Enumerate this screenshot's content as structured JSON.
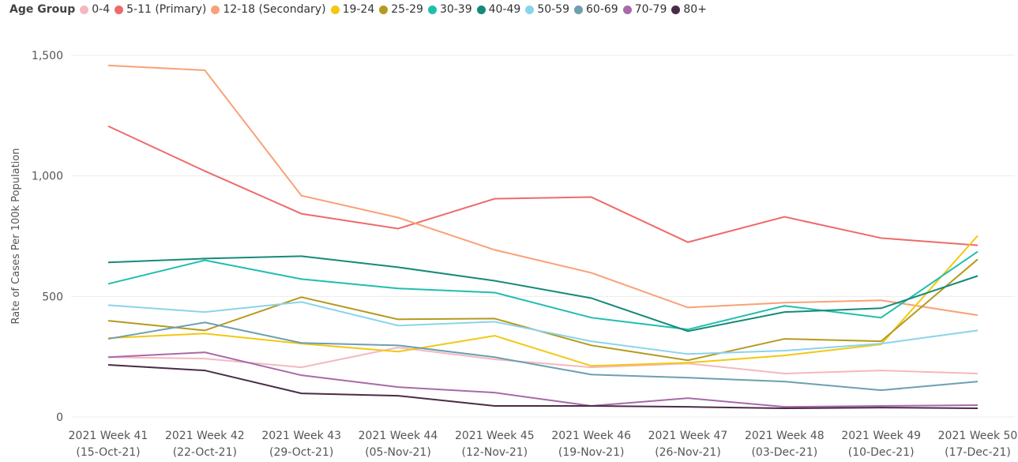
{
  "chart_data": {
    "type": "line",
    "legend_title": "Age Group",
    "y_label": "Rate of Cases Per 100k Population",
    "categories": [
      [
        "2021 Week 41",
        "(15-Oct-21)"
      ],
      [
        "2021 Week 42",
        "(22-Oct-21)"
      ],
      [
        "2021 Week 43",
        "(29-Oct-21)"
      ],
      [
        "2021 Week 44",
        "(05-Nov-21)"
      ],
      [
        "2021 Week 45",
        "(12-Nov-21)"
      ],
      [
        "2021 Week 46",
        "(19-Nov-21)"
      ],
      [
        "2021 Week 47",
        "(26-Nov-21)"
      ],
      [
        "2021 Week 48",
        "(03-Dec-21)"
      ],
      [
        "2021 Week 49",
        "(10-Dec-21)"
      ],
      [
        "2021 Week 50",
        "(17-Dec-21)"
      ]
    ],
    "ylim": [
      0,
      1500
    ],
    "yticks": [
      0,
      500,
      {
        "value": 1000,
        "label": "1,000"
      },
      {
        "value": 1500,
        "label": "1,500"
      }
    ],
    "grid": true,
    "series": [
      {
        "name": "0-4",
        "color": "#f4b8c0",
        "values": [
          248,
          242,
          206,
          288,
          239,
          206,
          222,
          180,
          193,
          180
        ]
      },
      {
        "name": "5-11 (Primary)",
        "color": "#ef6a6a",
        "values": [
          1206,
          1020,
          843,
          781,
          905,
          912,
          725,
          830,
          742,
          712
        ]
      },
      {
        "name": "12-18 (Secondary)",
        "color": "#f9a177",
        "values": [
          1458,
          1438,
          918,
          827,
          693,
          598,
          454,
          474,
          484,
          422
        ]
      },
      {
        "name": "19-24",
        "color": "#f2c811",
        "values": [
          327,
          346,
          304,
          271,
          337,
          212,
          225,
          255,
          301,
          752
        ]
      },
      {
        "name": "25-29",
        "color": "#b59a1f",
        "values": [
          399,
          359,
          497,
          405,
          408,
          297,
          235,
          324,
          314,
          654
        ]
      },
      {
        "name": "30-39",
        "color": "#1fbeb0",
        "values": [
          552,
          650,
          572,
          533,
          516,
          412,
          363,
          461,
          412,
          686
        ]
      },
      {
        "name": "40-49",
        "color": "#168a79",
        "values": [
          641,
          657,
          667,
          621,
          565,
          493,
          356,
          435,
          451,
          585
        ]
      },
      {
        "name": "50-59",
        "color": "#8ad4eb",
        "values": [
          464,
          435,
          477,
          379,
          395,
          314,
          261,
          275,
          304,
          359
        ]
      },
      {
        "name": "60-69",
        "color": "#6c9fb0",
        "values": [
          324,
          392,
          307,
          297,
          248,
          176,
          163,
          147,
          111,
          147
        ]
      },
      {
        "name": "70-79",
        "color": "#a86aa8",
        "values": [
          248,
          268,
          173,
          124,
          101,
          46,
          78,
          42,
          46,
          49
        ]
      },
      {
        "name": "80+",
        "color": "#4a2c45",
        "values": [
          216,
          193,
          98,
          88,
          46,
          46,
          42,
          36,
          39,
          36
        ]
      }
    ]
  }
}
